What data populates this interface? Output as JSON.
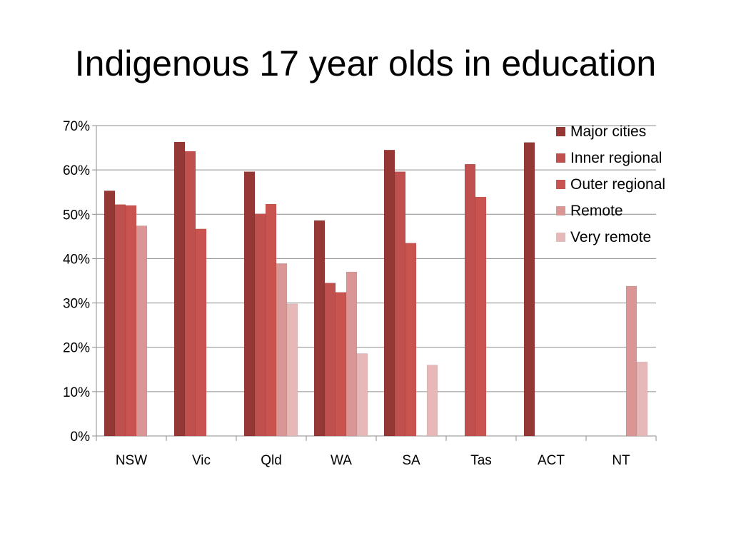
{
  "chart_data": {
    "type": "bar",
    "title": "Indigenous 17 year olds in education",
    "categories": [
      "NSW",
      "Vic",
      "Qld",
      "WA",
      "SA",
      "Tas",
      "ACT",
      "NT"
    ],
    "y_ticks": [
      "0%",
      "10%",
      "20%",
      "30%",
      "40%",
      "50%",
      "60%",
      "70%"
    ],
    "ylim": [
      0,
      70
    ],
    "grid": true,
    "legend_position": "top-right",
    "series": [
      {
        "name": "Major cities",
        "color": "#953735",
        "values": [
          55.3,
          66.3,
          59.6,
          48.6,
          64.5,
          null,
          66.2,
          null
        ]
      },
      {
        "name": "Inner regional",
        "color": "#C0504D",
        "values": [
          52.2,
          64.2,
          50.1,
          34.5,
          59.6,
          61.3,
          null,
          null
        ]
      },
      {
        "name": "Outer regional",
        "color": "#C9544F",
        "values": [
          52.0,
          46.7,
          52.3,
          32.4,
          43.5,
          53.9,
          null,
          null
        ]
      },
      {
        "name": "Remote",
        "color": "#D99694",
        "values": [
          47.4,
          null,
          38.9,
          37.0,
          null,
          null,
          null,
          33.8
        ]
      },
      {
        "name": "Very remote",
        "color": "#E6B9B8",
        "values": [
          null,
          null,
          29.8,
          18.6,
          16.0,
          null,
          null,
          16.7
        ]
      }
    ]
  }
}
